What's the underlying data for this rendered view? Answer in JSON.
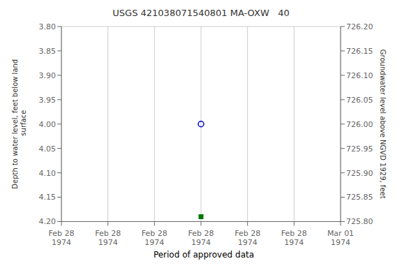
{
  "chart_data": {
    "type": "scatter",
    "title": "USGS 421038071540801 MA-OXW   40",
    "ylabel": "Depth to water level, feet below land\n surface",
    "y2label": "Groundwater level above NGVD 1929, feet",
    "categories": [
      "Feb 28\n1974",
      "Feb 28\n1974",
      "Feb 28\n1974",
      "Feb 28\n1974",
      "Feb 28\n1974",
      "Feb 28\n1974",
      "Mar 01\n1974"
    ],
    "series": [
      {
        "color": "#0000cc",
        "marker": "open circle",
        "values": [
          null,
          null,
          null,
          4.0,
          null,
          null,
          null
        ]
      },
      {
        "name": "Period of approved data",
        "color": "#007700",
        "marker": "square",
        "values": [
          null,
          null,
          null,
          4.19,
          null,
          null,
          null
        ]
      }
    ],
    "ylim": [
      4.2,
      3.8
    ],
    "yticks": [
      {
        "value": 3.8,
        "label": "3.80"
      },
      {
        "value": 3.85,
        "label": "3.85"
      },
      {
        "value": 3.9,
        "label": "3.90"
      },
      {
        "value": 3.95,
        "label": "3.95"
      },
      {
        "value": 4.0,
        "label": "4.00"
      },
      {
        "value": 4.05,
        "label": "4.05"
      },
      {
        "value": 4.1,
        "label": "4.10"
      },
      {
        "value": 4.15,
        "label": "4.15"
      },
      {
        "value": 4.2,
        "label": "4.20"
      }
    ],
    "y2lim": [
      725.8,
      726.2
    ],
    "y2ticks": [
      {
        "value": 725.8,
        "label": "725.80"
      },
      {
        "value": 725.85,
        "label": "725.85"
      },
      {
        "value": 725.9,
        "label": "725.90"
      },
      {
        "value": 725.95,
        "label": "725.95"
      },
      {
        "value": 726.0,
        "label": "726.00"
      },
      {
        "value": 726.05,
        "label": "726.05"
      },
      {
        "value": 726.1,
        "label": "726.10"
      },
      {
        "value": 726.15,
        "label": "726.15"
      },
      {
        "value": 726.2,
        "label": "726.20"
      }
    ],
    "grid": true,
    "legend": "bottom"
  }
}
